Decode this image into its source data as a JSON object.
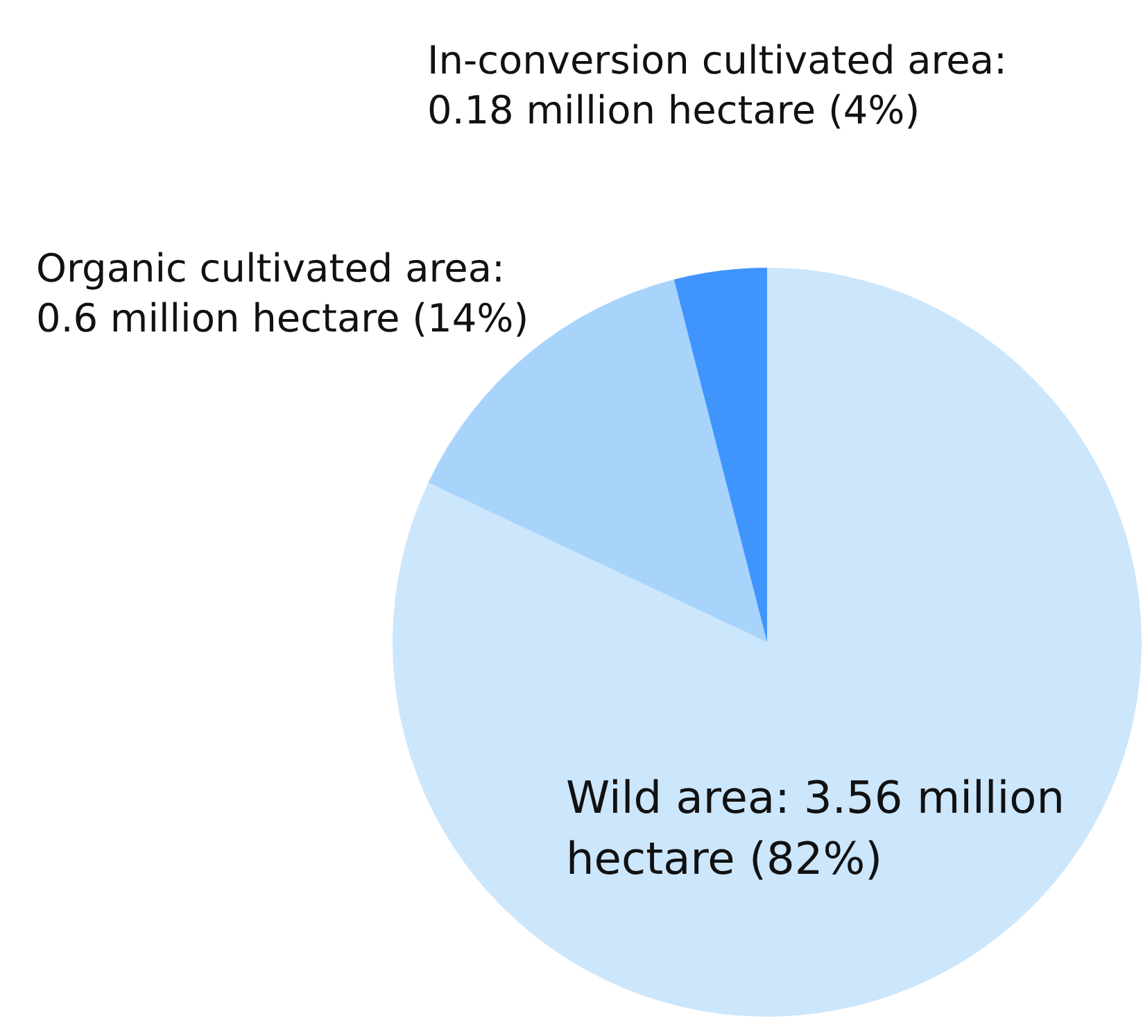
{
  "chart_data": {
    "type": "pie",
    "categories": [
      "Wild area: 3.56 million hectare (82%)",
      "Organic cultivated area: 0.6 million hectare (14%)",
      "In-conversion cultivated area: 0.18 million hectare (4%)"
    ],
    "values": [
      82,
      14,
      4
    ],
    "colors": [
      "#cce6fc",
      "#a8d4fc",
      "#3f95fc"
    ]
  }
}
